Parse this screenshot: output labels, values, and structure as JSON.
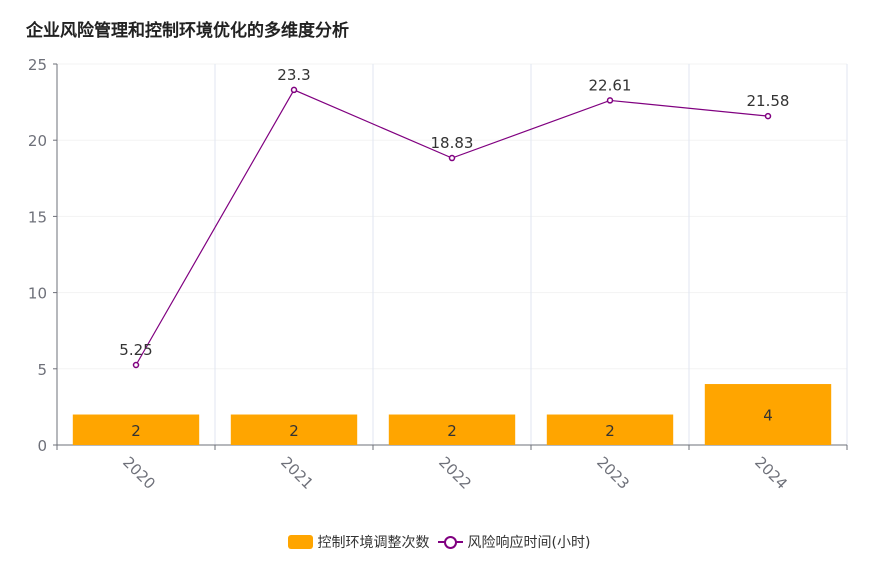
{
  "title": "企业风险管理和控制环境优化的多维度分析",
  "colors": {
    "bar": "#FFA500",
    "line": "#800080",
    "axis": "#6E7079",
    "grid": "#E0E6F1",
    "label": "#333333"
  },
  "chart_data": {
    "type": "bar",
    "title": "企业风险管理和控制环境优化的多维度分析",
    "categories": [
      "2020",
      "2021",
      "2022",
      "2023",
      "2024"
    ],
    "ylim": [
      0,
      25
    ],
    "yticks": [
      0,
      5,
      10,
      15,
      20,
      25
    ],
    "grid": true,
    "legend_position": "bottom-center",
    "series": [
      {
        "name": "控制环境调整次数",
        "type": "bar",
        "values": [
          2,
          2,
          2,
          2,
          4
        ],
        "labels": [
          "2",
          "2",
          "2",
          "2",
          "4"
        ]
      },
      {
        "name": "风险响应时间(小时)",
        "type": "line",
        "values": [
          5.25,
          23.3,
          18.83,
          22.61,
          21.58
        ],
        "labels": [
          "5.25",
          "23.3",
          "18.83",
          "22.61",
          "21.58"
        ]
      }
    ]
  },
  "legend": {
    "items": [
      {
        "label": "控制环境调整次数",
        "kind": "bar"
      },
      {
        "label": "风险响应时间(小时)",
        "kind": "line"
      }
    ]
  }
}
